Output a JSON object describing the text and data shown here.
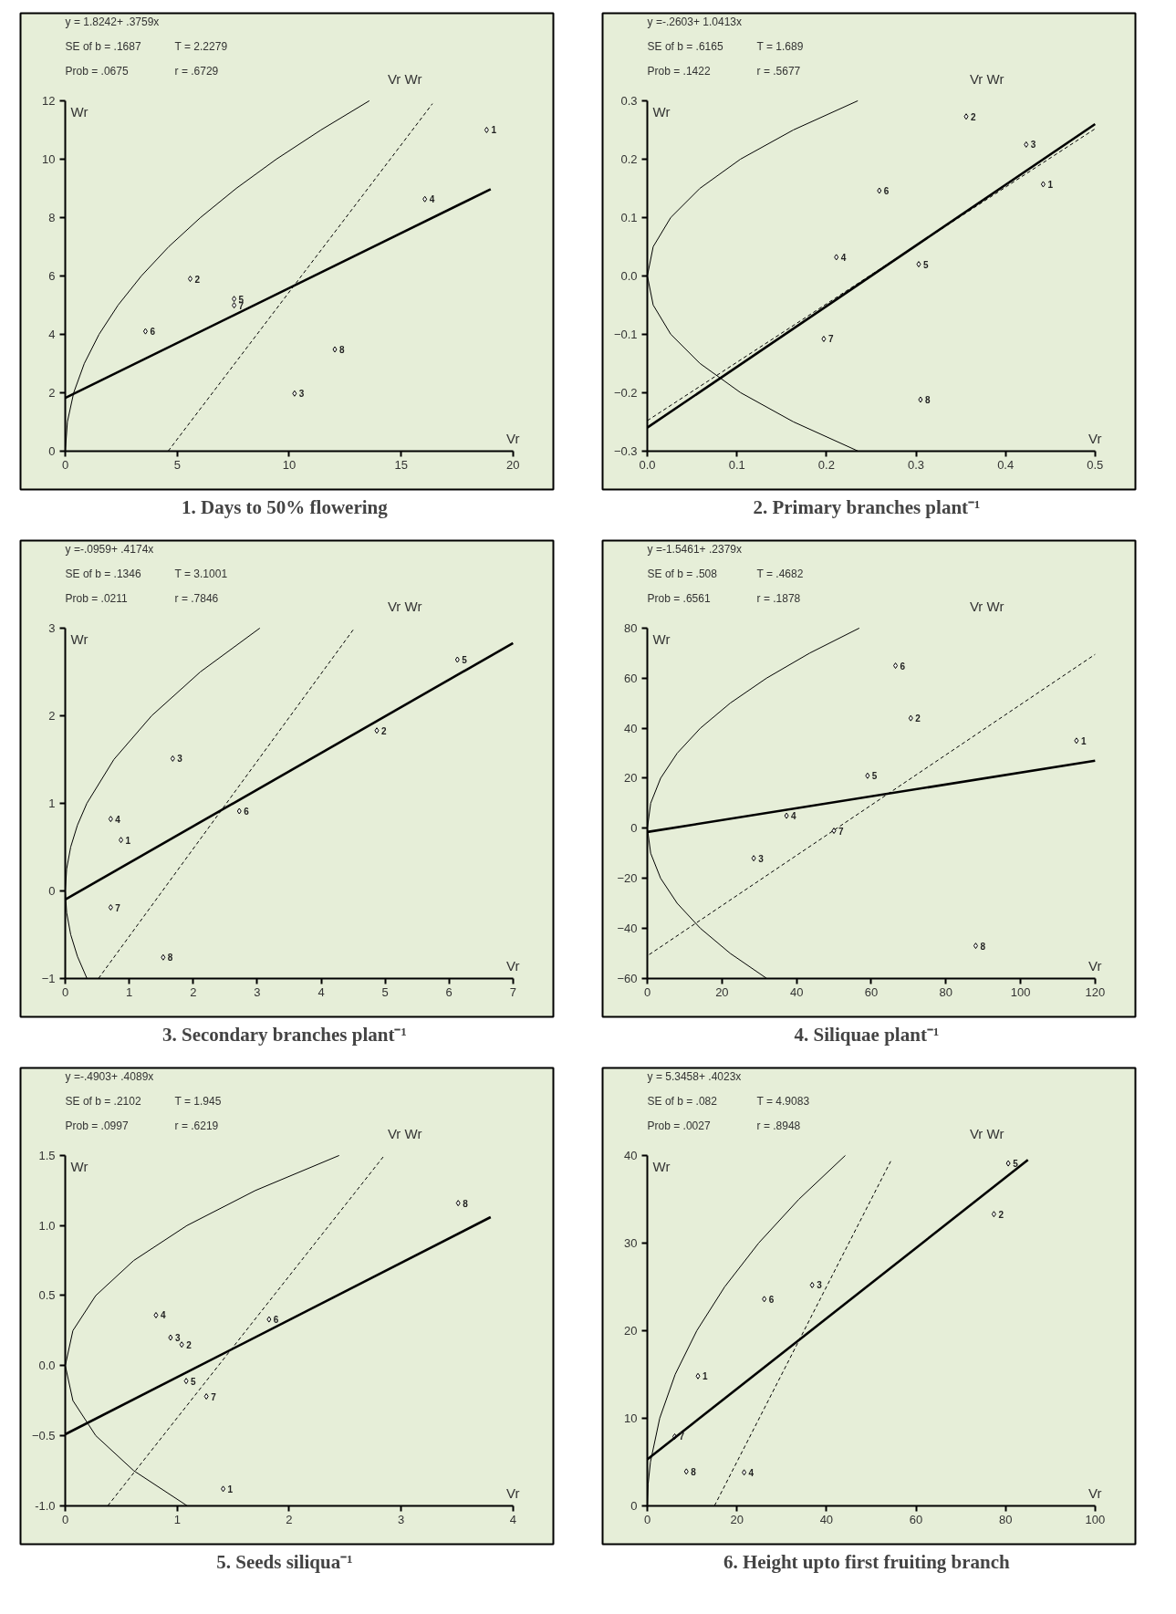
{
  "chart_data": [
    {
      "type": "scatter",
      "title": "1.  Days to 50% flowering",
      "xlabel": "Vr",
      "ylabel": "Wr",
      "xlim": [
        0,
        20
      ],
      "ylim": [
        0,
        12
      ],
      "xticks": [
        0,
        5,
        10,
        15,
        20
      ],
      "yticks": [
        0,
        2,
        4,
        6,
        8,
        10,
        12
      ],
      "grid": false,
      "series": [
        {
          "marker": "diamond",
          "color": "#000000",
          "x": [
            18.82,
            5.58,
            10.24,
            16.06,
            7.54,
            3.58,
            7.54,
            12.04
          ],
          "values": [
            11.0,
            5.9,
            1.97,
            8.63,
            5.21,
            4.1,
            4.99,
            3.48
          ]
        },
        {
          "type": "line",
          "line_style": "solid",
          "color": "#000000",
          "x": [
            0,
            19
          ],
          "values": [
            1.82,
            8.97
          ]
        },
        {
          "type": "line",
          "line_style": "dashed",
          "color": "#000000",
          "x": [
            4.6,
            16.4
          ],
          "values": [
            0,
            11.9
          ]
        },
        {
          "type": "line",
          "line_style": "solid",
          "color": "#000000",
          "x": [
            0,
            0.094,
            0.377,
            0.85,
            1.51,
            2.36,
            3.4,
            4.62,
            6.04,
            7.64,
            9.43,
            11.42,
            13.58
          ],
          "values": [
            0,
            1,
            2,
            3,
            4,
            5,
            6,
            7,
            8,
            9,
            10,
            11,
            12
          ]
        }
      ],
      "annotations": [
        "y = 1.8242+ .3759x",
        "SE of b = .1687",
        "T = 2.2279",
        "Prob    = .0675",
        "r = .6729",
        "Vr   Wr",
        {
          "text": "1",
          "x": 18.82,
          "y": 11.0
        },
        {
          "text": "2",
          "x": 5.58,
          "y": 5.9
        },
        {
          "text": "3",
          "x": 10.24,
          "y": 1.97
        },
        {
          "text": "4",
          "x": 16.06,
          "y": 8.63
        },
        {
          "text": "5",
          "x": 7.54,
          "y": 5.21
        },
        {
          "text": "6",
          "x": 3.58,
          "y": 4.1
        },
        {
          "text": "7",
          "x": 7.54,
          "y": 4.99
        },
        {
          "text": "8",
          "x": 12.04,
          "y": 3.48
        }
      ]
    },
    {
      "type": "scatter",
      "title": "2.  Primary branches plant⁻¹",
      "xlabel": "Vr",
      "ylabel": "Wr",
      "xlim": [
        0,
        0.5
      ],
      "ylim": [
        -0.3,
        0.3
      ],
      "xticks": [
        {
          "value": 0,
          "label": "0.0"
        },
        0.1,
        0.2,
        0.3,
        0.4,
        0.5
      ],
      "yticks": [
        -0.3,
        -0.2,
        -0.1,
        {
          "value": 0,
          "label": "0.0"
        },
        0.1,
        0.2,
        0.3
      ],
      "grid": false,
      "series": [
        {
          "marker": "diamond",
          "color": "#000000",
          "x": [
            0.442,
            0.356,
            0.423,
            0.211,
            0.303,
            0.259,
            0.197,
            0.305
          ],
          "values": [
            0.157,
            0.273,
            0.225,
            0.032,
            0.02,
            0.146,
            -0.108,
            -0.212
          ]
        },
        {
          "type": "line",
          "line_style": "solid",
          "color": "#000000",
          "x": [
            0,
            0.5
          ],
          "values": [
            -0.26,
            0.26
          ]
        },
        {
          "type": "line",
          "line_style": "dashed",
          "color": "#000000",
          "x": [
            0,
            0.5
          ],
          "values": [
            -0.248,
            0.252
          ]
        },
        {
          "type": "line",
          "line_style": "solid",
          "color": "#000000",
          "x": [
            0.235,
            0.163,
            0.104,
            0.0587,
            0.0261,
            0.0065,
            0,
            0.0065,
            0.0261,
            0.0587,
            0.104,
            0.163,
            0.235
          ],
          "values": [
            -0.3,
            -0.25,
            -0.2,
            -0.15,
            -0.1,
            -0.05,
            0,
            0.05,
            0.1,
            0.15,
            0.2,
            0.25,
            0.3
          ]
        }
      ],
      "annotations": [
        "y =-.2603+ 1.0413x",
        "SE of b = .6165",
        "T = 1.689",
        "Prob    = .1422",
        "r = .5677",
        "Vr   Wr",
        {
          "text": "1",
          "x": 0.442,
          "y": 0.157
        },
        {
          "text": "2",
          "x": 0.356,
          "y": 0.273
        },
        {
          "text": "3",
          "x": 0.423,
          "y": 0.225
        },
        {
          "text": "4",
          "x": 0.211,
          "y": 0.032
        },
        {
          "text": "5",
          "x": 0.303,
          "y": 0.02
        },
        {
          "text": "6",
          "x": 0.259,
          "y": 0.146
        },
        {
          "text": "7",
          "x": 0.197,
          "y": -0.108
        },
        {
          "text": "8",
          "x": 0.305,
          "y": -0.212
        }
      ]
    },
    {
      "type": "scatter",
      "title": "3.  Secondary branches plant⁻¹",
      "xlabel": "Vr",
      "ylabel": "Wr",
      "xlim": [
        0,
        7
      ],
      "ylim": [
        -1,
        3
      ],
      "xticks": [
        0,
        1,
        2,
        3,
        4,
        5,
        6,
        7
      ],
      "yticks": [
        -1,
        0,
        1,
        2,
        3
      ],
      "grid": false,
      "series": [
        {
          "marker": "diamond",
          "color": "#000000",
          "x": [
            0.87,
            4.87,
            1.68,
            0.71,
            6.13,
            2.72,
            0.71,
            1.53
          ],
          "values": [
            0.58,
            1.83,
            1.51,
            0.82,
            2.64,
            0.91,
            -0.19,
            -0.76
          ]
        },
        {
          "type": "line",
          "line_style": "solid",
          "color": "#000000",
          "x": [
            0,
            7
          ],
          "values": [
            -0.1,
            2.83
          ]
        },
        {
          "type": "line",
          "line_style": "dashed",
          "color": "#000000",
          "x": [
            0.52,
            4.5
          ],
          "values": [
            -1,
            2.98
          ]
        },
        {
          "type": "line",
          "line_style": "solid",
          "color": "#000000",
          "x": [
            0.338,
            0.19,
            0.0845,
            0.021,
            0,
            0.021,
            0.0845,
            0.19,
            0.338,
            0.76,
            1.351,
            2.111,
            3.041
          ],
          "values": [
            -1,
            -0.75,
            -0.5,
            -0.25,
            0,
            0.25,
            0.5,
            0.75,
            1,
            1.5,
            2,
            2.5,
            3
          ]
        }
      ],
      "annotations": [
        "y =-.0959+ .4174x",
        "SE of b = .1346",
        "T = 3.1001",
        "Prob    = .0211",
        "r = .7846",
        "Vr   Wr",
        {
          "text": "1",
          "x": 0.87,
          "y": 0.58
        },
        {
          "text": "2",
          "x": 4.87,
          "y": 1.83
        },
        {
          "text": "3",
          "x": 1.68,
          "y": 1.51
        },
        {
          "text": "4",
          "x": 0.71,
          "y": 0.82
        },
        {
          "text": "5",
          "x": 6.13,
          "y": 2.64
        },
        {
          "text": "6",
          "x": 2.72,
          "y": 0.91
        },
        {
          "text": "7",
          "x": 0.71,
          "y": -0.19
        },
        {
          "text": "8",
          "x": 1.53,
          "y": -0.76
        }
      ]
    },
    {
      "type": "scatter",
      "title": "4.  Siliquae plant⁻¹",
      "xlabel": "Vr",
      "ylabel": "Wr",
      "xlim": [
        0,
        120
      ],
      "ylim": [
        -60,
        80
      ],
      "xticks": [
        0,
        20,
        40,
        60,
        80,
        100,
        120
      ],
      "yticks": [
        -60,
        -40,
        -20,
        0,
        20,
        40,
        60,
        80
      ],
      "grid": false,
      "series": [
        {
          "marker": "diamond",
          "color": "#000000",
          "x": [
            115,
            70.6,
            28.5,
            37.3,
            59,
            66.5,
            50,
            88
          ],
          "values": [
            35,
            44,
            -12,
            5,
            21,
            65,
            -1,
            -47
          ]
        },
        {
          "type": "line",
          "line_style": "solid",
          "color": "#000000",
          "x": [
            0,
            120
          ],
          "values": [
            -1.5,
            27.0
          ]
        },
        {
          "type": "line",
          "line_style": "dashed",
          "color": "#000000",
          "x": [
            0.5,
            120
          ],
          "values": [
            -50.5,
            69.5
          ]
        },
        {
          "type": "line",
          "line_style": "solid",
          "color": "#000000",
          "x": [
            31.94,
            22.18,
            14.2,
            7.99,
            3.55,
            0.887,
            0,
            0.887,
            3.55,
            7.99,
            14.2,
            22.18,
            31.94,
            43.48,
            56.79
          ],
          "values": [
            -60,
            -50,
            -40,
            -30,
            -20,
            -10,
            0,
            10,
            20,
            30,
            40,
            50,
            60,
            70,
            80
          ]
        }
      ],
      "annotations": [
        "y =-1.5461+ .2379x",
        "SE of b = .508",
        "T = .4682",
        "Prob    = .6561",
        "r = .1878",
        "Vr   Wr",
        {
          "text": "1",
          "x": 115,
          "y": 35
        },
        {
          "text": "2",
          "x": 70.6,
          "y": 44
        },
        {
          "text": "3",
          "x": 28.5,
          "y": -12
        },
        {
          "text": "4",
          "x": 37.3,
          "y": 5
        },
        {
          "text": "5",
          "x": 59,
          "y": 21
        },
        {
          "text": "6",
          "x": 66.5,
          "y": 65
        },
        {
          "text": "7",
          "x": 50,
          "y": -1
        },
        {
          "text": "8",
          "x": 88,
          "y": -47
        }
      ]
    },
    {
      "type": "scatter",
      "title": "5.  Seeds siliqua⁻¹",
      "xlabel": "Vr",
      "ylabel": "Wr",
      "xlim": [
        0,
        4
      ],
      "ylim": [
        -1,
        1.5
      ],
      "xticks": [
        0,
        1,
        2,
        3,
        4
      ],
      "yticks": [
        {
          "value": -1,
          "label": "-1.0"
        },
        -0.5,
        {
          "value": 0,
          "label": "0.0"
        },
        0.5,
        {
          "value": 1,
          "label": "1.0"
        },
        1.5
      ],
      "grid": false,
      "series": [
        {
          "marker": "diamond",
          "color": "#000000",
          "x": [
            1.41,
            1.04,
            0.94,
            0.81,
            1.08,
            1.82,
            1.26,
            3.51
          ],
          "values": [
            -0.88,
            0.15,
            0.2,
            0.36,
            -0.11,
            0.33,
            -0.22,
            1.16
          ]
        },
        {
          "type": "line",
          "line_style": "solid",
          "color": "#000000",
          "x": [
            0,
            3.8
          ],
          "values": [
            -0.49,
            1.06
          ]
        },
        {
          "type": "line",
          "line_style": "dashed",
          "color": "#000000",
          "x": [
            0.38,
            2.84
          ],
          "values": [
            -1,
            1.49
          ]
        },
        {
          "type": "line",
          "line_style": "solid",
          "color": "#000000",
          "x": [
            1.087,
            0.611,
            0.272,
            0.068,
            0,
            0.068,
            0.272,
            0.611,
            1.087,
            1.698,
            2.446
          ],
          "values": [
            -1,
            -0.75,
            -0.5,
            -0.25,
            0,
            0.25,
            0.5,
            0.75,
            1,
            1.25,
            1.5
          ]
        }
      ],
      "annotations": [
        "y =-.4903+ .4089x",
        "SE of b = .2102",
        "T = 1.945",
        "Prob    = .0997",
        "r = .6219",
        "Vr   Wr",
        {
          "text": "1",
          "x": 1.41,
          "y": -0.88
        },
        {
          "text": "2",
          "x": 1.04,
          "y": 0.15
        },
        {
          "text": "3",
          "x": 0.94,
          "y": 0.2
        },
        {
          "text": "4",
          "x": 0.81,
          "y": 0.36
        },
        {
          "text": "5",
          "x": 1.08,
          "y": -0.11
        },
        {
          "text": "6",
          "x": 1.82,
          "y": 0.33
        },
        {
          "text": "7",
          "x": 1.26,
          "y": -0.22
        },
        {
          "text": "8",
          "x": 3.51,
          "y": 1.16
        }
      ]
    },
    {
      "type": "scatter",
      "title": "6.  Height upto first fruiting branch",
      "xlabel": "Vr",
      "ylabel": "Wr",
      "xlim": [
        0,
        100
      ],
      "ylim": [
        0,
        40
      ],
      "xticks": [
        0,
        20,
        40,
        60,
        80,
        100
      ],
      "yticks": [
        0,
        10,
        20,
        30,
        40
      ],
      "grid": false,
      "series": [
        {
          "marker": "diamond",
          "color": "#000000",
          "x": [
            11.3,
            77.4,
            36.8,
            21.6,
            80.6,
            26.1,
            6.1,
            8.7
          ],
          "values": [
            14.8,
            33.3,
            25.2,
            3.8,
            39.1,
            23.6,
            7.9,
            3.9
          ]
        },
        {
          "type": "line",
          "line_style": "solid",
          "color": "#000000",
          "x": [
            0,
            85
          ],
          "values": [
            5.3,
            39.5
          ]
        },
        {
          "type": "line",
          "line_style": "dashed",
          "color": "#000000",
          "x": [
            15,
            54.5
          ],
          "values": [
            0,
            39.5
          ]
        },
        {
          "type": "line",
          "line_style": "solid",
          "color": "#000000",
          "x": [
            0,
            0.173,
            0.691,
            2.762,
            6.215,
            11.05,
            17.27,
            24.86,
            33.84,
            44.2
          ],
          "values": [
            0,
            2.5,
            5,
            10,
            15,
            20,
            25,
            30,
            35,
            40
          ]
        }
      ],
      "annotations": [
        "y = 5.3458+ .4023x",
        "SE of b = .082",
        "T = 4.9083",
        "Prob    = .0027",
        "r = .8948",
        "Vr   Wr",
        {
          "text": "1",
          "x": 11.3,
          "y": 14.8
        },
        {
          "text": "2",
          "x": 77.4,
          "y": 33.3
        },
        {
          "text": "3",
          "x": 36.8,
          "y": 25.2
        },
        {
          "text": "4",
          "x": 21.6,
          "y": 3.8
        },
        {
          "text": "5",
          "x": 80.6,
          "y": 39.1
        },
        {
          "text": "6",
          "x": 26.1,
          "y": 23.6
        },
        {
          "text": "7",
          "x": 6.1,
          "y": 7.9
        },
        {
          "text": "8",
          "x": 8.7,
          "y": 3.9
        }
      ]
    }
  ]
}
